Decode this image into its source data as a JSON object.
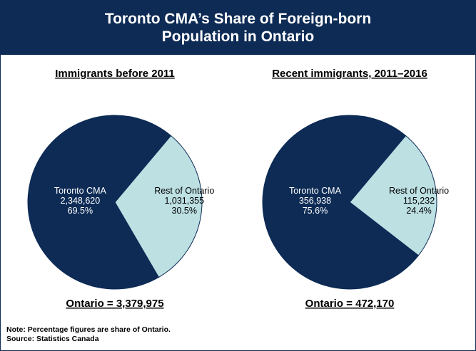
{
  "title": "Toronto CMA’s Share of Foreign-born Population in Ontario",
  "chart_data": [
    {
      "type": "pie",
      "title": "Immigrants before 2011",
      "categories": [
        "Toronto CMA",
        "Rest of Ontario"
      ],
      "values": [
        69.5,
        30.5
      ],
      "value_labels": [
        "69.5%",
        "30.5%"
      ],
      "counts": [
        {
          "value": 2348620,
          "label": "2,348,620"
        },
        {
          "value": 1031355,
          "label": "1,031,355"
        }
      ],
      "colors": [
        "#0d2b55",
        "#bde0e3"
      ],
      "total_label": "Ontario = 3,379,975"
    },
    {
      "type": "pie",
      "title": "Recent immigrants, 2011–2016",
      "categories": [
        "Toronto CMA",
        "Rest of Ontario"
      ],
      "values": [
        75.6,
        24.4
      ],
      "value_labels": [
        "75.6%",
        "24.4%"
      ],
      "counts": [
        {
          "value": 356938,
          "label": "356,938"
        },
        {
          "value": 115232,
          "label": "115,232"
        }
      ],
      "colors": [
        "#0d2b55",
        "#bde0e3"
      ],
      "total_label": "Ontario = 472,170"
    }
  ],
  "notes": [
    "Note: Percentage figures are share of Ontario.",
    "Source: Statistics Canada"
  ]
}
